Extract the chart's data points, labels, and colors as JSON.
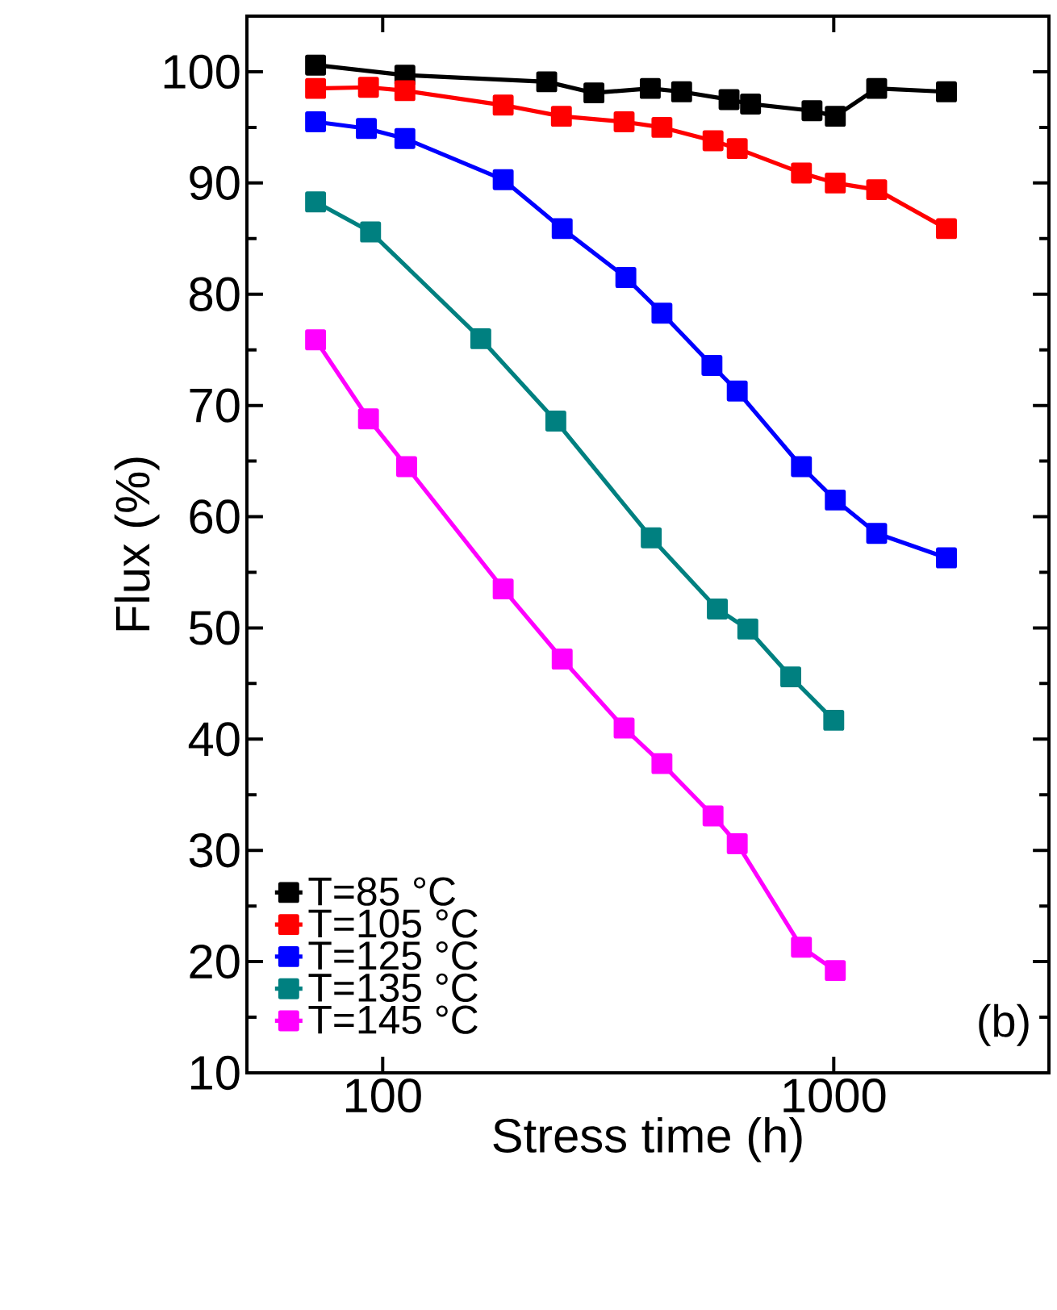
{
  "chart_data": {
    "type": "line",
    "xlabel": "Stress time (h)",
    "ylabel": "Flux (%)",
    "log": "x",
    "xlim": [
      50,
      3000
    ],
    "ylim": [
      10,
      105
    ],
    "xticks": [
      100,
      1000
    ],
    "yticks": [
      10,
      20,
      30,
      40,
      50,
      60,
      70,
      80,
      90,
      100
    ],
    "marker": "square",
    "line_style": "solid",
    "legend": "bottom left",
    "grid": false,
    "annotations": [
      "(b)"
    ],
    "series": [
      {
        "name": "T=85 °C",
        "color": "#000000",
        "x": [
          71,
          112,
          231,
          294,
          392,
          460,
          586,
          654,
          895,
          1008,
          1245,
          1778
        ],
        "values": [
          100.6,
          99.7,
          99.1,
          98.1,
          98.5,
          98.2,
          97.5,
          97.1,
          96.5,
          96.0,
          98.5,
          98.2
        ]
      },
      {
        "name": "T=105 °C",
        "color": "#ff0000",
        "x": [
          71,
          93,
          112,
          185,
          249,
          343,
          416,
          540,
          611,
          848,
          1008,
          1245,
          1778
        ],
        "values": [
          98.5,
          98.6,
          98.3,
          97.0,
          96.0,
          95.5,
          95.0,
          93.8,
          93.1,
          90.9,
          90.0,
          89.4,
          85.9
        ]
      },
      {
        "name": "T=125 °C",
        "color": "#0000ff",
        "x": [
          71,
          92,
          112,
          185,
          250,
          346,
          416,
          537,
          611,
          848,
          1008,
          1245,
          1778
        ],
        "values": [
          95.5,
          94.9,
          94.0,
          90.3,
          85.9,
          81.5,
          78.3,
          73.6,
          71.3,
          64.5,
          61.5,
          58.5,
          56.3
        ]
      },
      {
        "name": "T=135 °C",
        "color": "#008080",
        "x": [
          71,
          94,
          165,
          242,
          394,
          552,
          645,
          803,
          1000
        ],
        "values": [
          88.3,
          85.6,
          76.0,
          68.6,
          58.1,
          51.7,
          49.9,
          45.6,
          41.7
        ]
      },
      {
        "name": "T=145 °C",
        "color": "#ff00ff",
        "x": [
          71,
          93,
          113,
          185,
          250,
          343,
          416,
          540,
          611,
          848,
          1008
        ],
        "values": [
          75.9,
          68.8,
          64.5,
          53.5,
          47.2,
          41.0,
          37.8,
          33.1,
          30.6,
          21.3,
          19.2
        ]
      }
    ]
  }
}
